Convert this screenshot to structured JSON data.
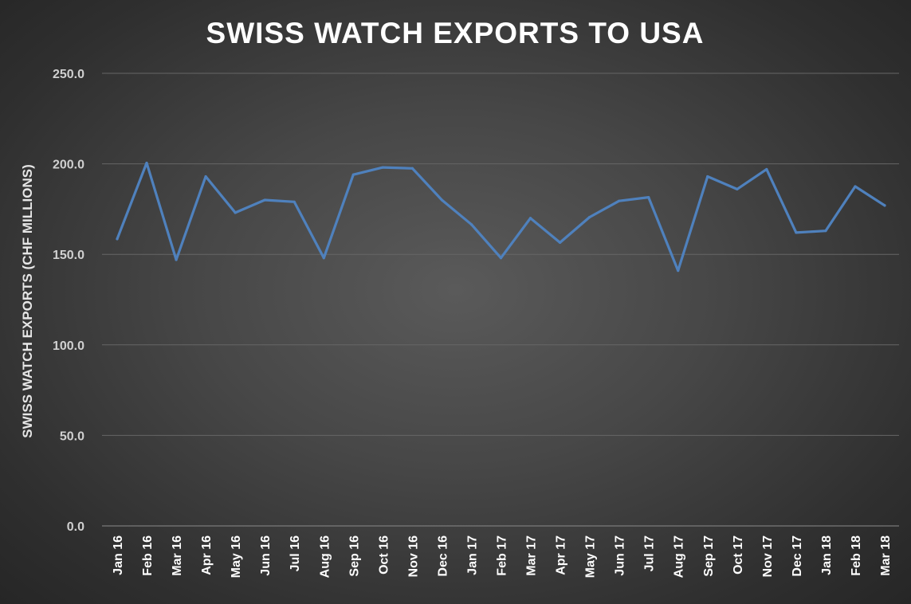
{
  "chart_data": {
    "type": "line",
    "title": "SWISS WATCH EXPORTS TO USA",
    "xlabel": "",
    "ylabel": "SWISS WATCH EXPORTS (CHF  MILLIONS)",
    "ylim": [
      0,
      250
    ],
    "yticks": [
      "0.0",
      "50.0",
      "100.0",
      "150.0",
      "200.0",
      "250.0"
    ],
    "ytick_values": [
      0,
      50,
      100,
      150,
      200,
      250
    ],
    "grid": true,
    "legend": "none",
    "categories": [
      "Jan 16",
      "Feb 16",
      "Mar 16",
      "Apr 16",
      "May 16",
      "Jun 16",
      "Jul 16",
      "Aug 16",
      "Sep 16",
      "Oct 16",
      "Nov 16",
      "Dec 16",
      "Jan 17",
      "Feb 17",
      "Mar 17",
      "Apr 17",
      "May 17",
      "Jun 17",
      "Jul 17",
      "Aug 17",
      "Sep 17",
      "Oct 17",
      "Nov 17",
      "Dec 17",
      "Jan 18",
      "Feb 18",
      "Mar 18"
    ],
    "series": [
      {
        "values": [
          158.5,
          200.5,
          147.0,
          193.0,
          173.0,
          180.0,
          179.0,
          148.0,
          194.0,
          198.0,
          197.5,
          180.0,
          166.5,
          148.0,
          170.0,
          156.5,
          170.5,
          179.5,
          181.5,
          141.0,
          193.0,
          186.0,
          197.0,
          162.0,
          163.0,
          187.5,
          177.0
        ]
      }
    ],
    "colors": {
      "series": "#4f81bd",
      "background": "#3c3c3c",
      "text": "#ffffff"
    }
  }
}
